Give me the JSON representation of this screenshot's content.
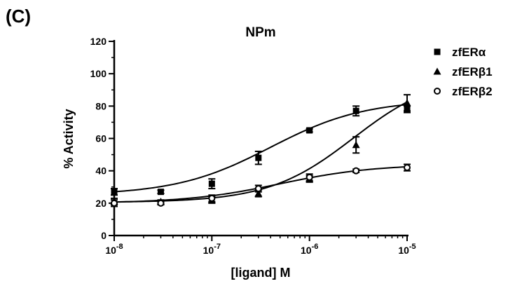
{
  "panel_label": "(C)",
  "chart_data": {
    "type": "scatter",
    "title": "NPm",
    "xlabel": "[ligand] M",
    "ylabel": "% Activity",
    "xscale": "log",
    "xlim": [
      "1e-8",
      "1e-5"
    ],
    "ylim": [
      0,
      120
    ],
    "yticks": [
      0,
      20,
      40,
      60,
      80,
      100,
      120
    ],
    "xticks": [
      {
        "value": "1e-8",
        "base": "10",
        "exp": "-8"
      },
      {
        "value": "1e-7",
        "base": "10",
        "exp": "-7"
      },
      {
        "value": "1e-6",
        "base": "10",
        "exp": "-6"
      },
      {
        "value": "1e-5",
        "base": "10",
        "exp": "-5"
      }
    ],
    "legend_position": "right",
    "series": [
      {
        "name": "zfERα",
        "marker": "square",
        "x": [
          "1e-8",
          "3e-8",
          "1e-7",
          "3e-7",
          "1e-6",
          "3e-6",
          "1e-5"
        ],
        "y": [
          27,
          27,
          32,
          48,
          65,
          77,
          78
        ],
        "err": [
          2,
          1,
          3,
          4,
          1,
          3,
          2
        ],
        "fit": {
          "bottom": 25,
          "top": 84,
          "log_ec50": -6.4,
          "hill": 0.9
        }
      },
      {
        "name": "zfERβ1",
        "marker": "triangle",
        "x": [
          "1e-8",
          "3e-8",
          "1e-7",
          "3e-7",
          "1e-6",
          "3e-6",
          "1e-5"
        ],
        "y": [
          21,
          21,
          22,
          26,
          35,
          56,
          82
        ],
        "err": [
          2,
          1,
          2,
          2,
          2,
          5,
          5
        ],
        "fit": {
          "bottom": 20.5,
          "top": 100,
          "log_ec50": -5.55,
          "hill": 1.0
        }
      },
      {
        "name": "zfERβ2",
        "marker": "circle",
        "x": [
          "1e-8",
          "3e-8",
          "1e-7",
          "3e-7",
          "1e-6",
          "3e-6",
          "1e-5"
        ],
        "y": [
          20,
          20,
          23,
          29,
          36,
          40,
          42
        ],
        "err": [
          2,
          1,
          2,
          2,
          2,
          1,
          2
        ],
        "fit": {
          "bottom": 20,
          "top": 44,
          "log_ec50": -6.3,
          "hill": 0.9
        }
      }
    ]
  }
}
